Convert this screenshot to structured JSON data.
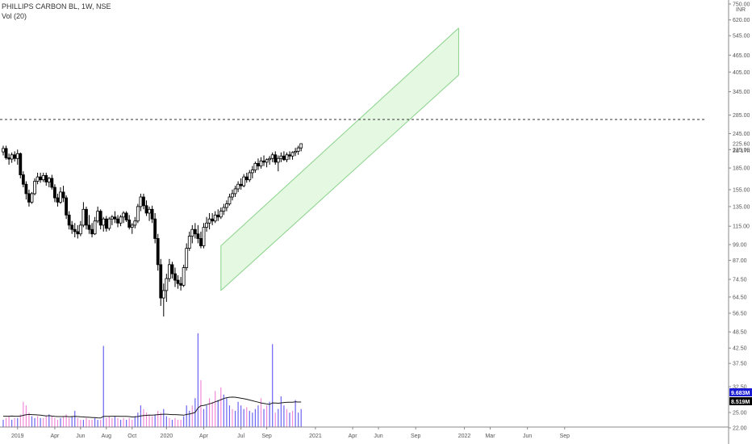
{
  "header": {
    "symbol_line": "PHILLIPS CARBON BL, 1W, NSE",
    "volume_line": "Vol (20)"
  },
  "axis": {
    "currency": "INR",
    "price_badge_value": "225.60",
    "price_badge_sub": "2d 17h",
    "vol_badge_1": "9.683M",
    "vol_badge_2": "8.519M"
  },
  "colors": {
    "up": "#ffffff",
    "down": "#000000",
    "wick": "#000000",
    "vol_up": "#6b64f0",
    "vol_down": "#f08ad8",
    "vol_ma": "#1a1a1a",
    "channel_fill": "#dff7dd",
    "channel_line": "#8ad28a",
    "dashed": "#333333",
    "axis_text": "#555555",
    "badge_blue": "#1b1bd6",
    "badge_black": "#000000"
  },
  "chart_data": {
    "type": "candlestick",
    "title": "PHILLIPS CARBON BL, 1W, NSE",
    "ylabel": "INR",
    "y_scale": "log",
    "ylim": [
      22,
      750
    ],
    "y_ticks": [
      "750.00",
      "620.00",
      "545.00",
      "465.00",
      "405.00",
      "345.00",
      "285.00",
      "245.00",
      "215.00",
      "185.00",
      "155.00",
      "135.00",
      "115.00",
      "99.00",
      "87.00",
      "74.50",
      "64.50",
      "56.50",
      "48.50",
      "42.50",
      "37.50",
      "32.50",
      "25.00",
      "22.00"
    ],
    "x_ticks": [
      {
        "label": "2019",
        "week": 5
      },
      {
        "label": "Apr",
        "week": 18
      },
      {
        "label": "Jun",
        "week": 27
      },
      {
        "label": "Aug",
        "week": 36
      },
      {
        "label": "Oct",
        "week": 45
      },
      {
        "label": "2020",
        "week": 57
      },
      {
        "label": "Apr",
        "week": 70
      },
      {
        "label": "Jul",
        "week": 83
      },
      {
        "label": "Sep",
        "week": 92
      },
      {
        "label": "2021",
        "week": 109
      },
      {
        "label": "Apr",
        "week": 122
      },
      {
        "label": "Jun",
        "week": 131
      },
      {
        "label": "Sep",
        "week": 144
      },
      {
        "label": "2022",
        "week": 161
      },
      {
        "label": "Mar",
        "week": 170
      },
      {
        "label": "Jun",
        "week": 183
      },
      {
        "label": "Sep",
        "week": 196
      }
    ],
    "last_price": 225.6,
    "horizontal_line": 275,
    "channel": {
      "lower_start": {
        "week": 76,
        "price": 68
      },
      "lower_end": {
        "week": 159,
        "price": 395
      },
      "upper_start": {
        "week": 76,
        "price": 98
      },
      "upper_end": {
        "week": 159,
        "price": 580
      }
    },
    "candles": [
      [
        0,
        211,
        222,
        205,
        217
      ],
      [
        1,
        217,
        222,
        198,
        201
      ],
      [
        2,
        201,
        208,
        190,
        199
      ],
      [
        3,
        199,
        210,
        193,
        206
      ],
      [
        4,
        206,
        212,
        195,
        200
      ],
      [
        5,
        200,
        215,
        190,
        208
      ],
      [
        6,
        208,
        210,
        170,
        175
      ],
      [
        7,
        175,
        180,
        158,
        162
      ],
      [
        8,
        162,
        166,
        143,
        150
      ],
      [
        9,
        150,
        155,
        135,
        140
      ],
      [
        10,
        140,
        152,
        138,
        150
      ],
      [
        11,
        150,
        170,
        148,
        166
      ],
      [
        12,
        166,
        178,
        162,
        172
      ],
      [
        13,
        172,
        178,
        164,
        168
      ],
      [
        14,
        168,
        178,
        165,
        174
      ],
      [
        15,
        174,
        178,
        160,
        165
      ],
      [
        16,
        165,
        172,
        158,
        170
      ],
      [
        17,
        170,
        175,
        155,
        158
      ],
      [
        18,
        158,
        162,
        140,
        145
      ],
      [
        19,
        145,
        150,
        135,
        140
      ],
      [
        20,
        140,
        158,
        138,
        152
      ],
      [
        21,
        152,
        160,
        140,
        145
      ],
      [
        22,
        145,
        148,
        122,
        126
      ],
      [
        23,
        126,
        130,
        112,
        116
      ],
      [
        24,
        116,
        120,
        108,
        112
      ],
      [
        25,
        112,
        118,
        105,
        110
      ],
      [
        26,
        110,
        116,
        104,
        108
      ],
      [
        27,
        108,
        120,
        106,
        116
      ],
      [
        28,
        116,
        140,
        114,
        132
      ],
      [
        29,
        132,
        135,
        112,
        116
      ],
      [
        30,
        116,
        126,
        108,
        112
      ],
      [
        31,
        112,
        118,
        105,
        108
      ],
      [
        32,
        108,
        124,
        107,
        120
      ],
      [
        33,
        120,
        135,
        118,
        130
      ],
      [
        34,
        130,
        132,
        112,
        116
      ],
      [
        35,
        116,
        124,
        110,
        122
      ],
      [
        36,
        122,
        125,
        110,
        113
      ],
      [
        37,
        113,
        124,
        111,
        122
      ],
      [
        38,
        122,
        126,
        116,
        124
      ],
      [
        39,
        124,
        130,
        118,
        122
      ],
      [
        40,
        122,
        126,
        114,
        118
      ],
      [
        41,
        118,
        126,
        115,
        124
      ],
      [
        42,
        124,
        130,
        118,
        128
      ],
      [
        43,
        128,
        130,
        119,
        121
      ],
      [
        44,
        121,
        126,
        112,
        114
      ],
      [
        45,
        114,
        118,
        108,
        116
      ],
      [
        46,
        116,
        124,
        113,
        120
      ],
      [
        47,
        120,
        138,
        118,
        135
      ],
      [
        48,
        135,
        150,
        130,
        146
      ],
      [
        49,
        146,
        150,
        132,
        136
      ],
      [
        50,
        136,
        142,
        125,
        128
      ],
      [
        51,
        128,
        135,
        120,
        132
      ],
      [
        52,
        132,
        136,
        118,
        122
      ],
      [
        53,
        122,
        128,
        100,
        104
      ],
      [
        54,
        104,
        108,
        80,
        84
      ],
      [
        55,
        84,
        88,
        60,
        64
      ],
      [
        56,
        64,
        72,
        55,
        68
      ],
      [
        57,
        68,
        78,
        62,
        75
      ],
      [
        58,
        75,
        88,
        73,
        84
      ],
      [
        59,
        84,
        86,
        75,
        78
      ],
      [
        60,
        78,
        82,
        70,
        74
      ],
      [
        61,
        74,
        77,
        69,
        72
      ],
      [
        62,
        72,
        76,
        68,
        71
      ],
      [
        63,
        71,
        84,
        70,
        82
      ],
      [
        64,
        82,
        100,
        80,
        96
      ],
      [
        65,
        96,
        110,
        94,
        106
      ],
      [
        66,
        106,
        116,
        100,
        112
      ],
      [
        67,
        112,
        118,
        104,
        108
      ],
      [
        68,
        108,
        116,
        100,
        104
      ],
      [
        69,
        104,
        110,
        96,
        98
      ],
      [
        70,
        98,
        118,
        96,
        114
      ],
      [
        71,
        114,
        124,
        110,
        118
      ],
      [
        72,
        118,
        128,
        112,
        122
      ],
      [
        73,
        122,
        128,
        116,
        120
      ],
      [
        74,
        120,
        130,
        118,
        126
      ],
      [
        75,
        126,
        132,
        120,
        124
      ],
      [
        76,
        124,
        134,
        122,
        130
      ],
      [
        77,
        130,
        138,
        126,
        134
      ],
      [
        78,
        134,
        142,
        130,
        138
      ],
      [
        79,
        138,
        150,
        136,
        146
      ],
      [
        80,
        146,
        155,
        142,
        150
      ],
      [
        81,
        150,
        160,
        146,
        156
      ],
      [
        82,
        156,
        166,
        152,
        162
      ],
      [
        83,
        162,
        170,
        155,
        160
      ],
      [
        84,
        160,
        176,
        158,
        172
      ],
      [
        85,
        172,
        178,
        164,
        168
      ],
      [
        86,
        168,
        182,
        165,
        178
      ],
      [
        87,
        178,
        188,
        170,
        182
      ],
      [
        88,
        182,
        195,
        178,
        192
      ],
      [
        89,
        192,
        200,
        182,
        188
      ],
      [
        90,
        188,
        202,
        184,
        196
      ],
      [
        91,
        196,
        205,
        188,
        194
      ],
      [
        92,
        194,
        200,
        186,
        198
      ],
      [
        93,
        198,
        204,
        190,
        200
      ],
      [
        94,
        200,
        210,
        194,
        206
      ],
      [
        95,
        206,
        212,
        190,
        194
      ],
      [
        96,
        194,
        205,
        180,
        200
      ],
      [
        97,
        200,
        210,
        194,
        204
      ],
      [
        98,
        204,
        212,
        196,
        198
      ],
      [
        99,
        198,
        210,
        194,
        206
      ],
      [
        100,
        206,
        212,
        198,
        204
      ],
      [
        101,
        204,
        212,
        198,
        210
      ],
      [
        102,
        210,
        218,
        204,
        212
      ],
      [
        103,
        212,
        222,
        206,
        218
      ],
      [
        104,
        218,
        226,
        212,
        225.6
      ]
    ],
    "volume": {
      "ylabel": "Vol (20)",
      "ma_series_name": "Vol MA 20",
      "max": 60,
      "bars": [
        [
          0,
          4,
          1
        ],
        [
          1,
          5,
          0
        ],
        [
          2,
          6,
          0
        ],
        [
          3,
          4,
          1
        ],
        [
          4,
          5,
          0
        ],
        [
          5,
          5,
          1
        ],
        [
          6,
          7,
          0
        ],
        [
          7,
          14,
          0
        ],
        [
          8,
          12,
          0
        ],
        [
          9,
          8,
          0
        ],
        [
          10,
          6,
          1
        ],
        [
          11,
          5,
          1
        ],
        [
          12,
          6,
          0
        ],
        [
          13,
          5,
          1
        ],
        [
          14,
          5,
          0
        ],
        [
          15,
          6,
          0
        ],
        [
          16,
          7,
          1
        ],
        [
          17,
          6,
          0
        ],
        [
          18,
          5,
          0
        ],
        [
          19,
          4,
          0
        ],
        [
          20,
          5,
          1
        ],
        [
          21,
          6,
          0
        ],
        [
          22,
          7,
          0
        ],
        [
          23,
          5,
          0
        ],
        [
          24,
          6,
          1
        ],
        [
          25,
          9,
          1
        ],
        [
          26,
          5,
          0
        ],
        [
          27,
          4,
          0
        ],
        [
          28,
          4,
          1
        ],
        [
          29,
          5,
          0
        ],
        [
          30,
          4,
          0
        ],
        [
          31,
          4,
          0
        ],
        [
          32,
          5,
          1
        ],
        [
          33,
          4,
          1
        ],
        [
          34,
          4,
          0
        ],
        [
          35,
          45,
          1
        ],
        [
          36,
          5,
          0
        ],
        [
          37,
          6,
          0
        ],
        [
          38,
          5,
          0
        ],
        [
          39,
          6,
          1
        ],
        [
          40,
          5,
          0
        ],
        [
          41,
          4,
          1
        ],
        [
          42,
          5,
          0
        ],
        [
          43,
          4,
          1
        ],
        [
          44,
          5,
          0
        ],
        [
          45,
          4,
          0
        ],
        [
          46,
          6,
          1
        ],
        [
          47,
          8,
          1
        ],
        [
          48,
          12,
          1
        ],
        [
          49,
          10,
          0
        ],
        [
          50,
          8,
          0
        ],
        [
          51,
          7,
          0
        ],
        [
          52,
          6,
          0
        ],
        [
          53,
          7,
          1
        ],
        [
          54,
          9,
          0
        ],
        [
          55,
          8,
          0
        ],
        [
          56,
          10,
          1
        ],
        [
          57,
          6,
          1
        ],
        [
          58,
          5,
          0
        ],
        [
          59,
          4,
          1
        ],
        [
          60,
          5,
          0
        ],
        [
          61,
          4,
          0
        ],
        [
          62,
          4,
          0
        ],
        [
          63,
          6,
          1
        ],
        [
          64,
          12,
          1
        ],
        [
          65,
          9,
          1
        ],
        [
          66,
          12,
          0
        ],
        [
          67,
          16,
          1
        ],
        [
          68,
          52,
          1
        ],
        [
          69,
          26,
          0
        ],
        [
          70,
          10,
          1
        ],
        [
          71,
          12,
          1
        ],
        [
          72,
          16,
          0
        ],
        [
          73,
          14,
          0
        ],
        [
          74,
          20,
          0
        ],
        [
          75,
          15,
          1
        ],
        [
          76,
          22,
          0
        ],
        [
          77,
          18,
          1
        ],
        [
          78,
          16,
          1
        ],
        [
          79,
          12,
          1
        ],
        [
          80,
          10,
          0
        ],
        [
          81,
          9,
          1
        ],
        [
          82,
          14,
          1
        ],
        [
          83,
          12,
          1
        ],
        [
          84,
          10,
          1
        ],
        [
          85,
          11,
          0
        ],
        [
          86,
          9,
          1
        ],
        [
          87,
          8,
          1
        ],
        [
          88,
          10,
          1
        ],
        [
          89,
          12,
          1
        ],
        [
          90,
          16,
          0
        ],
        [
          91,
          10,
          1
        ],
        [
          92,
          12,
          0
        ],
        [
          93,
          14,
          1
        ],
        [
          94,
          46,
          1
        ],
        [
          95,
          8,
          0
        ],
        [
          96,
          10,
          1
        ],
        [
          97,
          17,
          1
        ],
        [
          98,
          12,
          1
        ],
        [
          99,
          10,
          0
        ],
        [
          100,
          8,
          1
        ],
        [
          101,
          9,
          0
        ],
        [
          102,
          15,
          1
        ],
        [
          103,
          8,
          1
        ],
        [
          104,
          10,
          1
        ]
      ],
      "ma": [
        6.0,
        6.0,
        6.0,
        6.1,
        6.0,
        6.0,
        6.1,
        6.5,
        6.8,
        7.0,
        6.9,
        6.8,
        6.7,
        6.6,
        6.4,
        6.2,
        6.3,
        6.1,
        5.9,
        5.8,
        5.8,
        5.8,
        5.9,
        5.7,
        5.8,
        5.9,
        5.8,
        5.7,
        5.6,
        5.5,
        5.4,
        5.3,
        5.3,
        5.1,
        5.0,
        5.9,
        5.9,
        5.9,
        6.0,
        6.0,
        6.0,
        5.9,
        5.9,
        5.9,
        5.8,
        5.6,
        5.7,
        5.8,
        6.2,
        6.4,
        6.5,
        6.6,
        6.6,
        6.7,
        6.9,
        7.0,
        7.1,
        7.1,
        7.0,
        6.9,
        6.9,
        6.8,
        6.7,
        6.6,
        7.0,
        7.2,
        7.6,
        8.1,
        10.6,
        11.8,
        12.0,
        12.4,
        12.9,
        13.3,
        14.0,
        14.5,
        15.2,
        15.8,
        16.3,
        16.5,
        16.6,
        16.5,
        16.3,
        16.0,
        15.7,
        15.4,
        15.0,
        14.6,
        14.2,
        13.8,
        13.4,
        13.1,
        12.8,
        12.6,
        13.4,
        13.3,
        13.2,
        13.4,
        13.6,
        13.7,
        13.8,
        13.8,
        14.0,
        13.9,
        13.9
      ],
      "ticks": [
        "32.50",
        "25.00",
        "22.00"
      ]
    }
  }
}
